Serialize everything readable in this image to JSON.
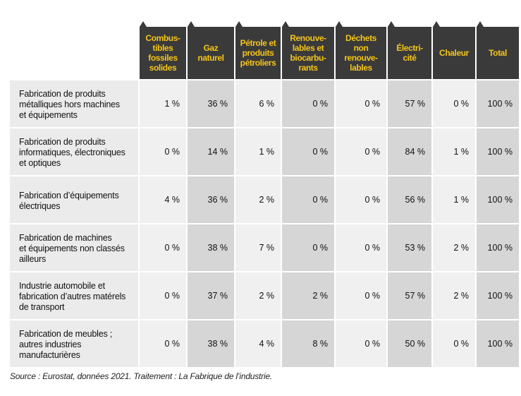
{
  "columns": [
    "Combus-\ntibles\nfossiles\nsolides",
    "Gaz\nnaturel",
    "Pétrole et\nproduits\npétroliers",
    "Renouve-\nlables et\nbiocarbu-\nrants",
    "Déchets\nnon\nrenouve-\nlables",
    "Électri-\ncité",
    "Chaleur",
    "Total"
  ],
  "rows": [
    {
      "label": "Fabrication de produits\nmétalliques hors machines\net équipements",
      "values": [
        "1 %",
        "36 %",
        "6 %",
        "0 %",
        "0 %",
        "57 %",
        "0 %",
        "100 %"
      ]
    },
    {
      "label": "Fabrication de produits\ninformatiques, électroniques\net optiques",
      "values": [
        "0 %",
        "14 %",
        "1 %",
        "0 %",
        "0 %",
        "84 %",
        "1 %",
        "100 %"
      ]
    },
    {
      "label": "Fabrication d’équipements\nélectriques",
      "values": [
        "4 %",
        "36 %",
        "2 %",
        "0 %",
        "0 %",
        "56 %",
        "1 %",
        "100 %"
      ]
    },
    {
      "label": "Fabrication de machines\net équipements non classés\nailleurs",
      "values": [
        "0 %",
        "38 %",
        "7 %",
        "0 %",
        "0 %",
        "53 %",
        "2 %",
        "100 %"
      ]
    },
    {
      "label": "Industrie automobile et\nfabrication d’autres matérels\nde transport",
      "values": [
        "0 %",
        "37 %",
        "2 %",
        "2 %",
        "0 %",
        "57 %",
        "2 %",
        "100 %"
      ]
    },
    {
      "label": "Fabrication de meubles ;\nautres industries\nmanufacturières",
      "values": [
        "0 %",
        "38 %",
        "4 %",
        "8 %",
        "0 %",
        "50 %",
        "0 %",
        "100 %"
      ]
    }
  ],
  "source": "Source : Eurostat, données 2021. Traitement : La Fabrique de l’industrie.",
  "colors": {
    "header_bg": "#3a3a3a",
    "header_text": "#f5c518",
    "cell_light": "#f0f0f0",
    "cell_dark": "#d6d6d6",
    "label_bg": "#ebebeb"
  }
}
